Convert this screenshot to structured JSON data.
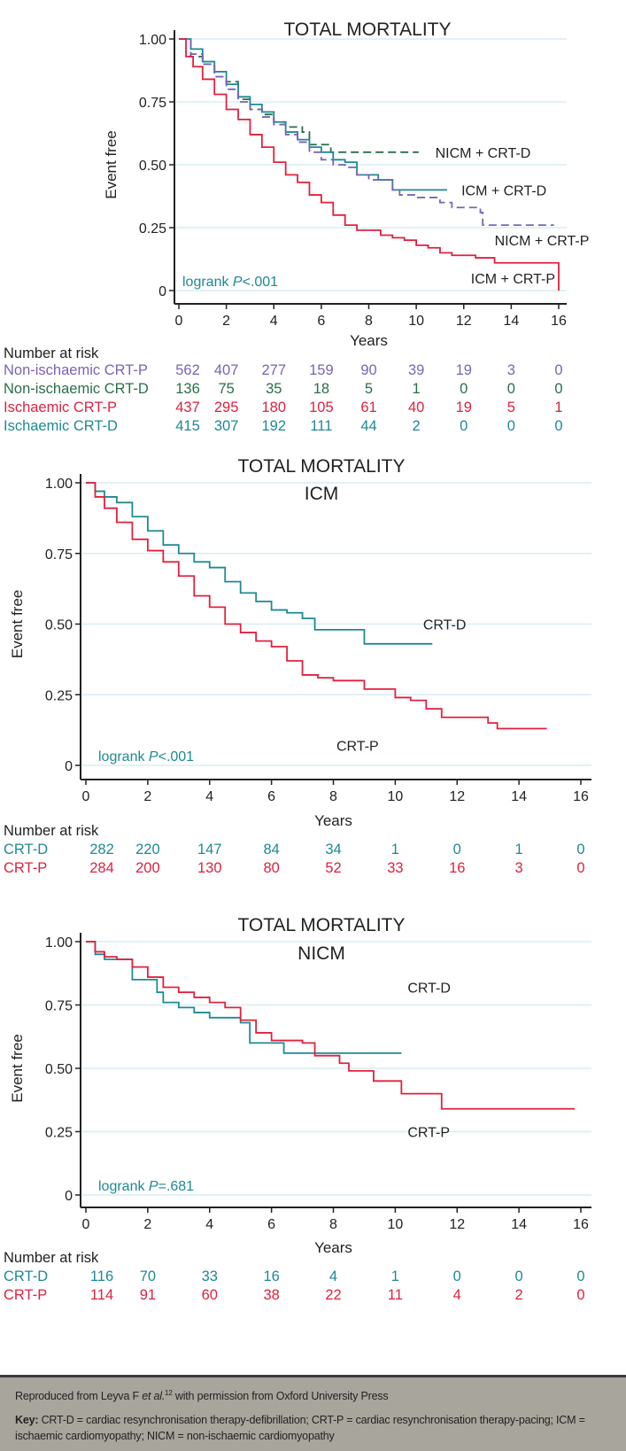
{
  "colors": {
    "teal": "#1e8a92",
    "red": "#e0213f",
    "purple": "#7a63b8",
    "green": "#2b6e4b",
    "grid": "#d8eef3",
    "text": "#222222"
  },
  "chart_data": [
    {
      "type": "line",
      "subtype": "kaplan-meier",
      "title": "TOTAL MORTALITY",
      "subtitle": "",
      "xlabel": "Years",
      "ylabel": "Event free",
      "xlim": [
        0,
        16
      ],
      "ylim": [
        0,
        1
      ],
      "xticks": [
        "0",
        "2",
        "4",
        "6",
        "8",
        "10",
        "12",
        "14",
        "16"
      ],
      "yticks": [
        "0",
        "0.25",
        "0.50",
        "0.75",
        "1.00"
      ],
      "grid": true,
      "annotation": {
        "prefix": "logrank ",
        "p": "P",
        "value": "<.001",
        "color_key": "teal"
      },
      "series": [
        {
          "name": "NICM + CRT-D",
          "color_key": "green",
          "dashed": true,
          "x": [
            0,
            0.5,
            1,
            1.5,
            2,
            2.5,
            3,
            3.5,
            4,
            4.5,
            5,
            5.2,
            5.5,
            6,
            6.4,
            8,
            10.1
          ],
          "y": [
            1,
            0.93,
            0.9,
            0.85,
            0.83,
            0.76,
            0.72,
            0.7,
            0.67,
            0.65,
            0.65,
            0.63,
            0.58,
            0.58,
            0.55,
            0.55,
            0.55
          ]
        },
        {
          "name": "ICM + CRT-D",
          "color_key": "teal",
          "dashed": false,
          "x": [
            0,
            0.5,
            1,
            1.5,
            2,
            2.5,
            3,
            3.5,
            4,
            4.5,
            5,
            5.5,
            6,
            6.5,
            7,
            7.5,
            8,
            8.4,
            9,
            11.3
          ],
          "y": [
            1,
            0.96,
            0.91,
            0.87,
            0.82,
            0.77,
            0.74,
            0.71,
            0.67,
            0.63,
            0.6,
            0.57,
            0.55,
            0.52,
            0.51,
            0.46,
            0.46,
            0.44,
            0.4,
            0.4
          ]
        },
        {
          "name": "NICM + CRT-P",
          "color_key": "purple",
          "dashed": true,
          "x": [
            0,
            0.5,
            1,
            1.5,
            2,
            2.5,
            3,
            3.5,
            4,
            4.5,
            5,
            5.5,
            6,
            6.5,
            7,
            7.5,
            8,
            9,
            9.3,
            10,
            11,
            11.5,
            12.7,
            12.8,
            15.8
          ],
          "y": [
            1,
            0.94,
            0.9,
            0.85,
            0.8,
            0.75,
            0.72,
            0.69,
            0.66,
            0.62,
            0.59,
            0.55,
            0.52,
            0.5,
            0.49,
            0.46,
            0.44,
            0.4,
            0.38,
            0.37,
            0.35,
            0.33,
            0.31,
            0.26,
            0.26
          ]
        },
        {
          "name": "ICM + CRT-P",
          "color_key": "red",
          "dashed": false,
          "x": [
            0,
            0.3,
            0.6,
            1,
            1.5,
            2,
            2.5,
            3,
            3.5,
            4,
            4.5,
            5,
            5.5,
            6,
            6.5,
            7,
            7.5,
            8,
            8.5,
            9,
            9.5,
            10,
            10.5,
            11,
            11.5,
            12,
            12.5,
            13.3,
            16,
            16
          ],
          "y": [
            1,
            0.93,
            0.89,
            0.84,
            0.78,
            0.72,
            0.68,
            0.62,
            0.57,
            0.51,
            0.46,
            0.43,
            0.38,
            0.35,
            0.3,
            0.26,
            0.24,
            0.24,
            0.22,
            0.21,
            0.2,
            0.18,
            0.17,
            0.15,
            0.14,
            0.14,
            0.13,
            0.11,
            0.11,
            0
          ]
        }
      ],
      "labels": [
        {
          "text": "NICM + CRT-D",
          "x": 10.8,
          "y": 0.55
        },
        {
          "text": "ICM + CRT-D",
          "x": 11.9,
          "y": 0.4
        },
        {
          "text": "NICM + CRT-P",
          "x": 13.3,
          "y": 0.2
        },
        {
          "text": "ICM + CRT-P",
          "x": 12.3,
          "y": 0.05
        }
      ],
      "risk_table": {
        "title": "Number at risk",
        "rows": [
          {
            "label": "Non-ischaemic CRT-P",
            "color_key": "purple",
            "values": [
              562,
              407,
              277,
              159,
              90,
              39,
              19,
              3,
              0
            ]
          },
          {
            "label": "Non-ischaemic CRT-D",
            "color_key": "green",
            "values": [
              136,
              75,
              35,
              18,
              5,
              1,
              0,
              0,
              0
            ]
          },
          {
            "label": "Ischaemic CRT-P",
            "color_key": "red",
            "values": [
              437,
              295,
              180,
              105,
              61,
              40,
              19,
              5,
              1
            ]
          },
          {
            "label": "Ischaemic CRT-D",
            "color_key": "teal",
            "values": [
              415,
              307,
              192,
              111,
              44,
              2,
              0,
              0,
              0
            ]
          }
        ]
      }
    },
    {
      "type": "line",
      "subtype": "kaplan-meier",
      "title": "TOTAL MORTALITY",
      "subtitle": "ICM",
      "xlabel": "Years",
      "ylabel": "Event free",
      "xlim": [
        0,
        16
      ],
      "ylim": [
        0,
        1
      ],
      "xticks": [
        "0",
        "2",
        "4",
        "6",
        "8",
        "10",
        "12",
        "14",
        "16"
      ],
      "yticks": [
        "0",
        "0.25",
        "0.50",
        "0.75",
        "1.00"
      ],
      "grid": true,
      "annotation": {
        "prefix": "logrank ",
        "p": "P",
        "value": "<.001",
        "color_key": "teal"
      },
      "series": [
        {
          "name": "CRT-D",
          "color_key": "teal",
          "dashed": false,
          "x": [
            0,
            0.3,
            0.6,
            1,
            1.5,
            2,
            2.5,
            3,
            3.5,
            4,
            4.5,
            5,
            5.5,
            6,
            6.5,
            7,
            7.4,
            8,
            9,
            9,
            11.2
          ],
          "y": [
            1,
            0.97,
            0.95,
            0.93,
            0.88,
            0.83,
            0.78,
            0.75,
            0.72,
            0.7,
            0.65,
            0.61,
            0.58,
            0.55,
            0.54,
            0.52,
            0.48,
            0.48,
            0.48,
            0.43,
            0.43
          ]
        },
        {
          "name": "CRT-P",
          "color_key": "red",
          "dashed": false,
          "x": [
            0,
            0.3,
            0.6,
            1,
            1.5,
            2,
            2.5,
            3,
            3.5,
            4,
            4.5,
            5,
            5.5,
            6,
            6.5,
            7,
            7.5,
            8,
            9,
            10,
            10.5,
            11,
            11.5,
            12,
            13,
            13.3,
            14.9
          ],
          "y": [
            1,
            0.95,
            0.91,
            0.86,
            0.8,
            0.76,
            0.72,
            0.67,
            0.6,
            0.56,
            0.5,
            0.47,
            0.44,
            0.42,
            0.37,
            0.32,
            0.31,
            0.3,
            0.27,
            0.24,
            0.23,
            0.2,
            0.17,
            0.17,
            0.15,
            0.13,
            0.13
          ]
        }
      ],
      "labels": [
        {
          "text": "CRT-D",
          "x": 10.9,
          "y": 0.5
        },
        {
          "text": "CRT-P",
          "x": 8.1,
          "y": 0.07
        }
      ],
      "risk_table": {
        "title": "Number at risk",
        "rows": [
          {
            "label": "CRT-D",
            "color_key": "teal",
            "values": [
              282,
              220,
              147,
              84,
              34,
              1,
              0,
              1,
              0
            ]
          },
          {
            "label": "CRT-P",
            "color_key": "red",
            "values": [
              284,
              200,
              130,
              80,
              52,
              33,
              16,
              3,
              0
            ]
          }
        ]
      }
    },
    {
      "type": "line",
      "subtype": "kaplan-meier",
      "title": "TOTAL MORTALITY",
      "subtitle": "NICM",
      "xlabel": "Years",
      "ylabel": "Event free",
      "xlim": [
        0,
        16
      ],
      "ylim": [
        0,
        1
      ],
      "xticks": [
        "0",
        "2",
        "4",
        "6",
        "8",
        "10",
        "12",
        "14",
        "16"
      ],
      "yticks": [
        "0",
        "0.25",
        "0.50",
        "0.75",
        "1.00"
      ],
      "grid": true,
      "annotation": {
        "prefix": "logrank ",
        "p": "P",
        "value": "=.681",
        "color_key": "teal"
      },
      "series": [
        {
          "name": "CRT-D",
          "color_key": "teal",
          "dashed": false,
          "x": [
            0,
            0.3,
            0.6,
            1,
            1.5,
            2,
            2.3,
            2.5,
            3,
            3.5,
            4,
            5,
            5.3,
            6,
            6.4,
            7,
            8,
            10.2
          ],
          "y": [
            1,
            0.95,
            0.93,
            0.93,
            0.85,
            0.85,
            0.8,
            0.76,
            0.74,
            0.72,
            0.7,
            0.68,
            0.6,
            0.6,
            0.56,
            0.56,
            0.56,
            0.56
          ]
        },
        {
          "name": "CRT-P",
          "color_key": "red",
          "dashed": false,
          "x": [
            0,
            0.3,
            0.6,
            1,
            1.5,
            2,
            2.5,
            3,
            3.5,
            4,
            4.5,
            5,
            5.5,
            6,
            7,
            7.4,
            8.2,
            8.5,
            9.3,
            10.2,
            11.5,
            15.8
          ],
          "y": [
            1,
            0.96,
            0.94,
            0.93,
            0.9,
            0.86,
            0.82,
            0.8,
            0.78,
            0.76,
            0.74,
            0.69,
            0.64,
            0.61,
            0.6,
            0.55,
            0.52,
            0.49,
            0.45,
            0.4,
            0.34,
            0.34
          ]
        }
      ],
      "labels": [
        {
          "text": "CRT-D",
          "x": 10.4,
          "y": 0.82
        },
        {
          "text": "CRT-P",
          "x": 10.4,
          "y": 0.25
        }
      ],
      "risk_table": {
        "title": "Number at risk",
        "rows": [
          {
            "label": "CRT-D",
            "color_key": "teal",
            "values": [
              116,
              70,
              33,
              16,
              4,
              1,
              0,
              0,
              0
            ]
          },
          {
            "label": "CRT-P",
            "color_key": "red",
            "values": [
              114,
              91,
              60,
              38,
              22,
              11,
              4,
              2,
              0
            ]
          }
        ]
      }
    }
  ],
  "footer": {
    "source_prefix": "Reproduced from Leyva F ",
    "source_italic": "et al.",
    "source_ref": "12",
    "source_suffix": " with permission from Oxford University Press",
    "key_label": "Key:",
    "key_text": " CRT-D = cardiac resynchronisation therapy-defibrillation; CRT-P = cardiac resynchronisation therapy-pacing; ICM = ischaemic cardiomyopathy; NICM = non-ischaemic cardiomyopathy"
  }
}
